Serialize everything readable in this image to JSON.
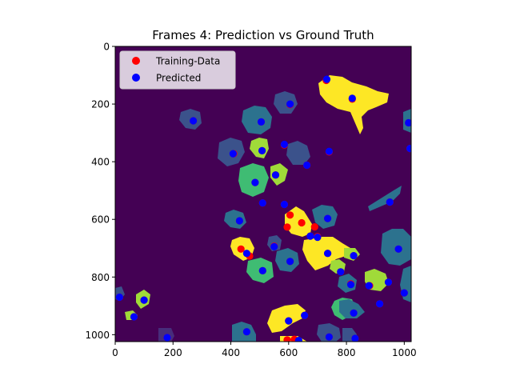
{
  "chart_data": {
    "type": "scatter",
    "title": "Frames 4: Prediction vs Ground Truth",
    "xlabel": "",
    "ylabel": "",
    "xlim": [
      0,
      1024
    ],
    "ylim": [
      1024,
      0
    ],
    "x_ticks": [
      0,
      200,
      400,
      600,
      800,
      1000
    ],
    "y_ticks": [
      0,
      200,
      400,
      600,
      800,
      1000
    ],
    "x_tick_labels": [
      "0",
      "200",
      "400",
      "600",
      "800",
      "1000"
    ],
    "y_tick_labels": [
      "0",
      "200",
      "400",
      "600",
      "800",
      "1000"
    ],
    "grid": false,
    "legend_position": "top-left",
    "background_image": "segmentation-mask",
    "colors": {
      "background": "#440154",
      "training": "#ff0000",
      "predicted": "#0000ff"
    },
    "series": [
      {
        "name": "Training-Data",
        "color": "#ff0000",
        "points": [
          [
            730,
            118
          ],
          [
            820,
            183
          ],
          [
            605,
            202
          ],
          [
            270,
            258
          ],
          [
            505,
            262
          ],
          [
            1015,
            265
          ],
          [
            410,
            372
          ],
          [
            508,
            362
          ],
          [
            585,
            342
          ],
          [
            663,
            412
          ],
          [
            740,
            366
          ],
          [
            1020,
            354
          ],
          [
            555,
            446
          ],
          [
            484,
            472
          ],
          [
            510,
            543
          ],
          [
            585,
            548
          ],
          [
            950,
            540
          ],
          [
            605,
            585
          ],
          [
            645,
            612
          ],
          [
            735,
            597
          ],
          [
            430,
            605
          ],
          [
            595,
            627
          ],
          [
            690,
            626
          ],
          [
            435,
            703
          ],
          [
            465,
            727
          ],
          [
            550,
            693
          ],
          [
            675,
            658
          ],
          [
            700,
            660
          ],
          [
            735,
            718
          ],
          [
            825,
            726
          ],
          [
            510,
            778
          ],
          [
            605,
            746
          ],
          [
            780,
            782
          ],
          [
            815,
            824
          ],
          [
            880,
            830
          ],
          [
            945,
            818
          ],
          [
            980,
            703
          ],
          [
            1000,
            855
          ],
          [
            915,
            893
          ],
          [
            825,
            925
          ],
          [
            15,
            870
          ],
          [
            100,
            880
          ],
          [
            65,
            938
          ],
          [
            180,
            1010
          ],
          [
            455,
            990
          ],
          [
            600,
            952
          ],
          [
            655,
            933
          ],
          [
            740,
            1008
          ],
          [
            830,
            1013
          ],
          [
            595,
            1018
          ],
          [
            620,
            1016
          ]
        ]
      },
      {
        "name": "Predicted",
        "color": "#0000ff",
        "points": [
          [
            732,
            114
          ],
          [
            820,
            180
          ],
          [
            605,
            200
          ],
          [
            270,
            258
          ],
          [
            505,
            262
          ],
          [
            1015,
            265
          ],
          [
            408,
            372
          ],
          [
            508,
            362
          ],
          [
            585,
            340
          ],
          [
            663,
            412
          ],
          [
            740,
            364
          ],
          [
            1020,
            354
          ],
          [
            555,
            446
          ],
          [
            484,
            472
          ],
          [
            510,
            543
          ],
          [
            585,
            548
          ],
          [
            950,
            540
          ],
          [
            735,
            597
          ],
          [
            430,
            605
          ],
          [
            675,
            658
          ],
          [
            700,
            662
          ],
          [
            455,
            718
          ],
          [
            550,
            695
          ],
          [
            735,
            718
          ],
          [
            825,
            726
          ],
          [
            510,
            778
          ],
          [
            605,
            746
          ],
          [
            780,
            782
          ],
          [
            815,
            826
          ],
          [
            878,
            830
          ],
          [
            945,
            818
          ],
          [
            980,
            703
          ],
          [
            1000,
            855
          ],
          [
            915,
            893
          ],
          [
            825,
            925
          ],
          [
            15,
            870
          ],
          [
            100,
            880
          ],
          [
            65,
            938
          ],
          [
            180,
            1010
          ],
          [
            455,
            990
          ],
          [
            600,
            952
          ],
          [
            655,
            933
          ],
          [
            740,
            1008
          ],
          [
            830,
            1013
          ],
          [
            635,
            1020
          ]
        ]
      }
    ]
  }
}
